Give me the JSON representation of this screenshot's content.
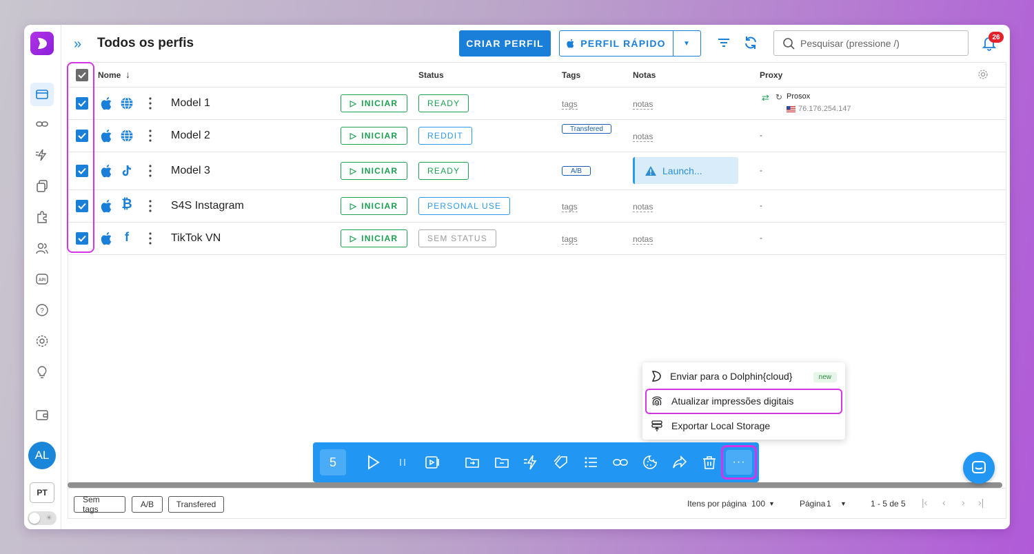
{
  "header": {
    "title": "Todos os perfis",
    "create_button": "CRIAR PERFIL",
    "quick_button": "PERFIL RÁPIDO",
    "search_placeholder": "Pesquisar (pressione /)",
    "notification_count": "26"
  },
  "sidebar": {
    "items": [
      "browser-profiles-icon",
      "link-icon",
      "automation-icon",
      "copy-icon",
      "extension-icon",
      "users-icon",
      "api-icon",
      "help-icon",
      "settings-icon",
      "lightbulb-icon",
      "wallet-icon"
    ],
    "avatar": "AL",
    "language": "PT"
  },
  "table": {
    "columns": {
      "name": "Nome",
      "status": "Status",
      "tags": "Tags",
      "notes": "Notas",
      "proxy": "Proxy"
    },
    "start_label": "INICIAR",
    "rows": [
      {
        "name": "Model 1",
        "status": "READY",
        "tags": "tags",
        "notes": "notas",
        "proxy_name": "Prosox",
        "proxy_ip": "76.176.254.147"
      },
      {
        "name": "Model 2",
        "status": "REDDIT",
        "tags": "Transfered",
        "notes": "notas",
        "proxy": "-"
      },
      {
        "name": "Model 3",
        "status": "READY",
        "tags": "A/B",
        "notes": "Launch...",
        "proxy": "-"
      },
      {
        "name": "S4S Instagram",
        "status": "PERSONAL USE",
        "tags": "tags",
        "notes": "notas",
        "proxy": "-"
      },
      {
        "name": "TikTok VN",
        "status": "SEM STATUS",
        "tags": "tags",
        "notes": "notas",
        "proxy": "-"
      }
    ]
  },
  "context_menu": {
    "items": [
      {
        "label": "Enviar para o Dolphin{cloud}",
        "badge": "new"
      },
      {
        "label": "Atualizar impressões digitais"
      },
      {
        "label": "Exportar Local Storage"
      }
    ]
  },
  "action_bar": {
    "selected_count": "5",
    "more": "···"
  },
  "footer": {
    "tag_filters": [
      "Sem tags",
      "A/B",
      "Transfered"
    ],
    "items_per_page_label": "Itens por página",
    "items_per_page": "100",
    "page_label": "Página",
    "page": "1",
    "range": "1 - 5 de 5"
  },
  "colors": {
    "primary": "#1a7fd8",
    "action_bar": "#2196f3",
    "highlight": "#d436e6",
    "success": "#1aa050"
  }
}
